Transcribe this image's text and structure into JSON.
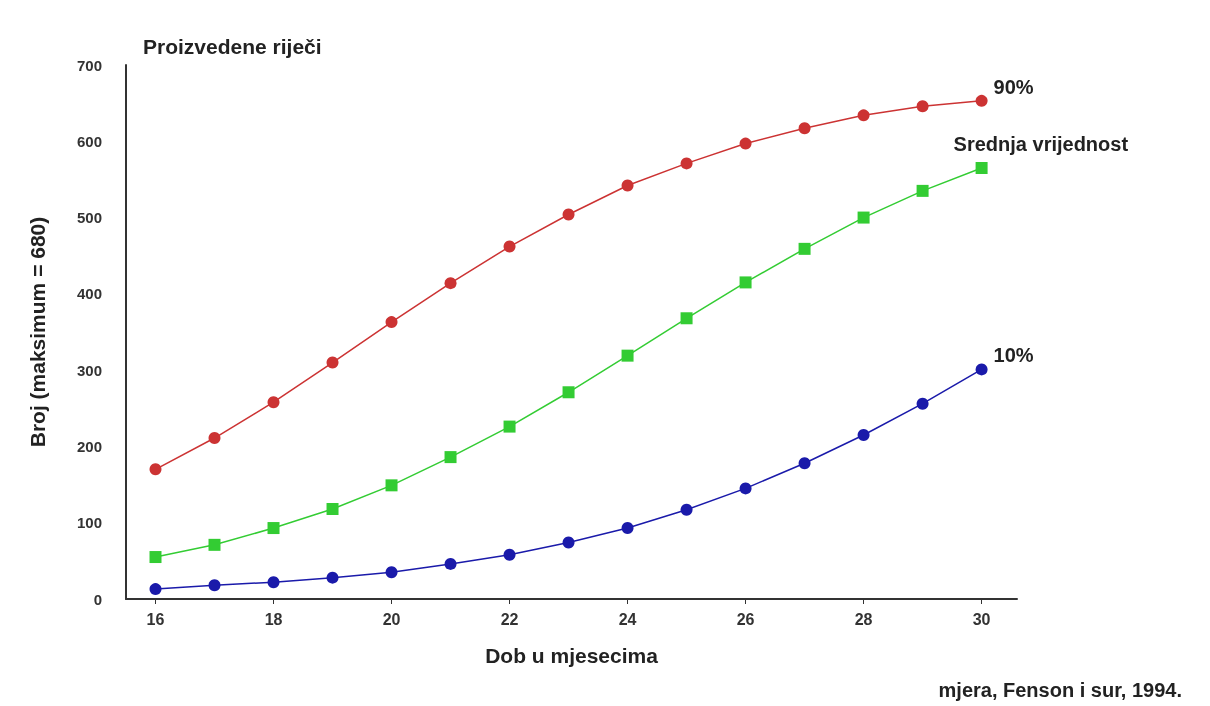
{
  "chart_data": {
    "type": "line",
    "title": "Proizvedene riječi",
    "xlabel": "Dob u mjesecima",
    "ylabel": "Broj (maksimum = 680)",
    "annotations": [
      "mjera, Fenson i sur, 1994."
    ],
    "x": [
      16,
      17,
      18,
      19,
      20,
      21,
      22,
      23,
      24,
      25,
      26,
      27,
      28,
      29,
      30
    ],
    "series": [
      {
        "name": "90%",
        "color": "#cc3333",
        "marker": "circle",
        "values": [
          170,
          211,
          258,
          310,
          363,
          414,
          462,
          504,
          542,
          571,
          597,
          617,
          634,
          646,
          653
        ]
      },
      {
        "name": "Srednja vrijednost",
        "color": "#33cc33",
        "marker": "square",
        "values": [
          55,
          71,
          93,
          118,
          149,
          186,
          226,
          271,
          319,
          368,
          415,
          459,
          500,
          535,
          565
        ]
      },
      {
        "name": "10%",
        "color": "#1a1aaa",
        "marker": "circle",
        "values": [
          13,
          18,
          22,
          28,
          35,
          46,
          58,
          74,
          93,
          117,
          145,
          178,
          215,
          256,
          301
        ]
      }
    ],
    "xlim": [
      15.5,
      30.6
    ],
    "xticks": [
      16,
      18,
      20,
      22,
      24,
      26,
      28,
      30
    ],
    "ylim": [
      0,
      700
    ],
    "yticks": [
      0,
      100,
      200,
      300,
      400,
      500,
      600,
      700
    ],
    "grid": false,
    "legend": false,
    "line_style": "solid"
  }
}
